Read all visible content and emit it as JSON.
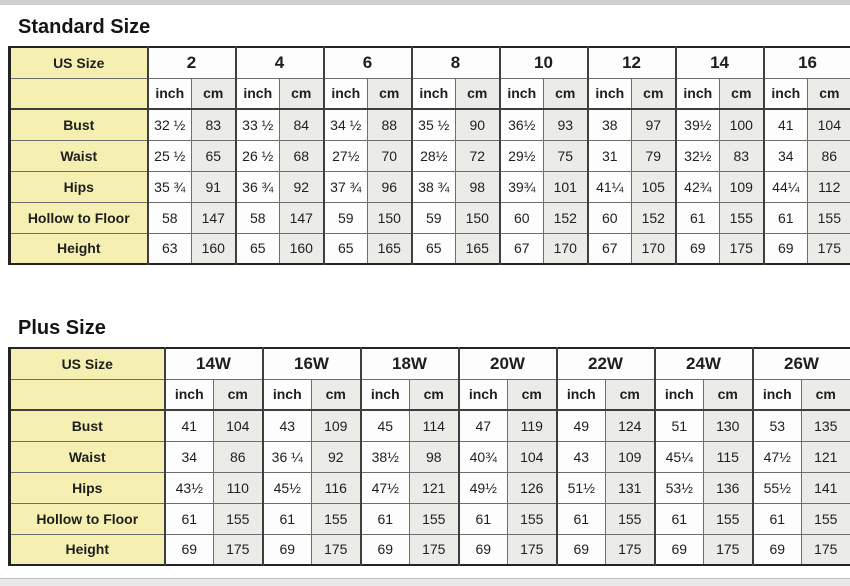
{
  "colors": {
    "label_column_bg": "#f5f0b2",
    "cm_column_bg": "#ebebe7",
    "inch_column_bg": "#fdfdfd",
    "table_border": "#242424",
    "top_strip": "#cfcfcf"
  },
  "tables": [
    {
      "title": "Standard Size",
      "corner_label": "US Size",
      "unit_labels": [
        "inch",
        "cm"
      ],
      "sizes": [
        "2",
        "4",
        "6",
        "8",
        "10",
        "12",
        "14",
        "16"
      ],
      "rows": [
        {
          "label": "Bust",
          "inch": [
            "32 ½",
            "33 ½",
            "34 ½",
            "35 ½",
            "36½",
            "38",
            "39½",
            "41"
          ],
          "cm": [
            "83",
            "84",
            "88",
            "90",
            "93",
            "97",
            "100",
            "104"
          ]
        },
        {
          "label": "Waist",
          "inch": [
            "25 ½",
            "26 ½",
            "27½",
            "28½",
            "29½",
            "31",
            "32½",
            "34"
          ],
          "cm": [
            "65",
            "68",
            "70",
            "72",
            "75",
            "79",
            "83",
            "86"
          ]
        },
        {
          "label": "Hips",
          "inch": [
            "35 ¾",
            "36 ¾",
            "37 ¾",
            "38 ¾",
            "39¾",
            "41¼",
            "42¾",
            "44¼"
          ],
          "cm": [
            "91",
            "92",
            "96",
            "98",
            "101",
            "105",
            "109",
            "112"
          ]
        },
        {
          "label": "Hollow to Floor",
          "inch": [
            "58",
            "58",
            "59",
            "59",
            "60",
            "60",
            "61",
            "61"
          ],
          "cm": [
            "147",
            "147",
            "150",
            "150",
            "152",
            "152",
            "155",
            "155"
          ]
        },
        {
          "label": "Height",
          "inch": [
            "63",
            "65",
            "65",
            "65",
            "67",
            "67",
            "69",
            "69"
          ],
          "cm": [
            "160",
            "160",
            "165",
            "165",
            "170",
            "170",
            "175",
            "175"
          ]
        }
      ]
    },
    {
      "title": "Plus Size",
      "corner_label": "US Size",
      "unit_labels": [
        "inch",
        "cm"
      ],
      "sizes": [
        "14W",
        "16W",
        "18W",
        "20W",
        "22W",
        "24W",
        "26W"
      ],
      "rows": [
        {
          "label": "Bust",
          "inch": [
            "41",
            "43",
            "45",
            "47",
            "49",
            "51",
            "53"
          ],
          "cm": [
            "104",
            "109",
            "114",
            "119",
            "124",
            "130",
            "135"
          ]
        },
        {
          "label": "Waist",
          "inch": [
            "34",
            "36 ¼",
            "38½",
            "40¾",
            "43",
            "45¼",
            "47½"
          ],
          "cm": [
            "86",
            "92",
            "98",
            "104",
            "109",
            "115",
            "121"
          ]
        },
        {
          "label": "Hips",
          "inch": [
            "43½",
            "45½",
            "47½",
            "49½",
            "51½",
            "53½",
            "55½"
          ],
          "cm": [
            "110",
            "116",
            "121",
            "126",
            "131",
            "136",
            "141"
          ]
        },
        {
          "label": "Hollow to Floor",
          "inch": [
            "61",
            "61",
            "61",
            "61",
            "61",
            "61",
            "61"
          ],
          "cm": [
            "155",
            "155",
            "155",
            "155",
            "155",
            "155",
            "155"
          ]
        },
        {
          "label": "Height",
          "inch": [
            "69",
            "69",
            "69",
            "69",
            "69",
            "69",
            "69"
          ],
          "cm": [
            "175",
            "175",
            "175",
            "175",
            "175",
            "175",
            "175"
          ]
        }
      ]
    }
  ]
}
